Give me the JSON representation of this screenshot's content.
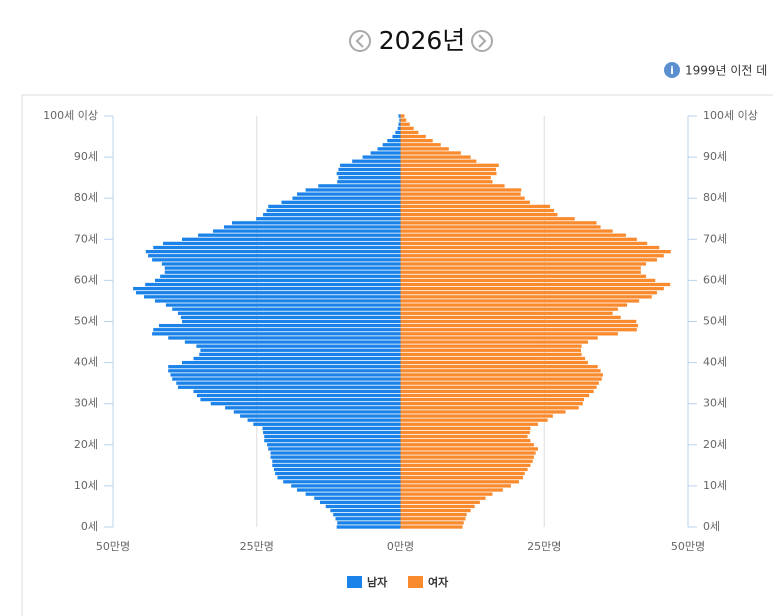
{
  "header": {
    "year": "2026년",
    "notice": "1999년 이전 데"
  },
  "chart_data": {
    "type": "pyramid",
    "y": [
      0,
      1,
      2,
      3,
      4,
      5,
      6,
      7,
      8,
      9,
      10,
      11,
      12,
      13,
      14,
      15,
      16,
      17,
      18,
      19,
      20,
      21,
      22,
      23,
      24,
      25,
      26,
      27,
      28,
      29,
      30,
      31,
      32,
      33,
      34,
      35,
      36,
      37,
      38,
      39,
      40,
      41,
      42,
      43,
      44,
      45,
      46,
      47,
      48,
      49,
      50,
      51,
      52,
      53,
      54,
      55,
      56,
      57,
      58,
      59,
      60,
      61,
      62,
      63,
      64,
      65,
      66,
      67,
      68,
      69,
      70,
      71,
      72,
      73,
      74,
      75,
      76,
      77,
      78,
      79,
      80,
      81,
      82,
      83,
      84,
      85,
      86,
      87,
      88,
      89,
      90,
      91,
      92,
      93,
      94,
      95,
      96,
      97,
      98,
      99,
      100
    ],
    "series": [
      {
        "name": "남자",
        "color": "#1a82e8",
        "side": "left",
        "values": [
          11.1,
          11,
          11.3,
          11.7,
          12.2,
          13,
          14,
          15,
          16.5,
          18,
          19,
          20.4,
          21.4,
          21.8,
          22,
          22.3,
          22.3,
          22.6,
          22.6,
          23,
          23.2,
          23.7,
          23.7,
          23.9,
          24,
          25.6,
          26.6,
          27.9,
          29,
          30.5,
          33,
          34.8,
          35.4,
          36,
          38.7,
          39,
          39.7,
          40,
          40.4,
          40.4,
          38,
          36,
          35,
          34.8,
          35.5,
          37.5,
          40.4,
          43.2,
          43,
          42,
          38,
          38.2,
          38.7,
          39.7,
          40.8,
          42.7,
          44.6,
          46,
          46.5,
          44.4,
          42.7,
          41.8,
          41,
          41,
          41.5,
          43.2,
          43.9,
          44.3,
          43,
          41.3,
          38,
          35.2,
          32.6,
          30.7,
          29.3,
          25.1,
          23.9,
          23.3,
          23,
          20.7,
          18.8,
          18,
          16.5,
          14.3,
          11,
          10.8,
          11.1,
          10.8,
          10.5,
          8.4,
          6.6,
          5.2,
          4,
          3.1,
          2.3,
          1.4,
          0.9,
          0.5,
          0.35,
          0.2,
          0.35
        ]
      },
      {
        "name": "여자",
        "color": "#f98a2e",
        "side": "right",
        "values": [
          10.8,
          11,
          11.3,
          11.5,
          12.2,
          12.9,
          13.8,
          14.8,
          16,
          17.8,
          19.2,
          20.6,
          21.3,
          21.6,
          22.1,
          22.6,
          23,
          23.2,
          23.5,
          23.9,
          23.2,
          22.6,
          22.1,
          22.5,
          22.6,
          23.9,
          25.6,
          26.5,
          28.7,
          31,
          31.7,
          31.9,
          32.8,
          33.6,
          34.1,
          34.5,
          35,
          35.2,
          34.8,
          34.3,
          32.6,
          32.1,
          31.5,
          31.4,
          31.5,
          32.6,
          34.3,
          37.8,
          41.1,
          41.3,
          41,
          38.3,
          36.9,
          37.8,
          39.4,
          41.5,
          43.7,
          44.6,
          45.8,
          46.9,
          44.3,
          42.7,
          41.8,
          41.8,
          42.7,
          44.6,
          45.8,
          47,
          45,
          42.9,
          41.1,
          39.2,
          36.9,
          34.8,
          34.1,
          30.3,
          27.3,
          26.7,
          26,
          22.5,
          21.6,
          20.9,
          21,
          18.1,
          16,
          15.7,
          16.7,
          16.6,
          17.1,
          13.2,
          12.2,
          10.5,
          8.4,
          7,
          5.6,
          4.4,
          3.1,
          2.3,
          1.6,
          1,
          0.7
        ]
      }
    ],
    "xlim": [
      -50,
      50
    ],
    "xticks": [
      {
        "value": -50,
        "label": "50만명"
      },
      {
        "value": -25,
        "label": "25만명"
      },
      {
        "value": 0,
        "label": "0만명"
      },
      {
        "value": 25,
        "label": "25만명"
      },
      {
        "value": 50,
        "label": "50만명"
      }
    ],
    "ylim": [
      0,
      100
    ],
    "yticks": [
      {
        "value": 0,
        "label": "0세"
      },
      {
        "value": 10,
        "label": "10세"
      },
      {
        "value": 20,
        "label": "20세"
      },
      {
        "value": 30,
        "label": "30세"
      },
      {
        "value": 40,
        "label": "40세"
      },
      {
        "value": 50,
        "label": "50세"
      },
      {
        "value": 60,
        "label": "60세"
      },
      {
        "value": 70,
        "label": "70세"
      },
      {
        "value": 80,
        "label": "80세"
      },
      {
        "value": 90,
        "label": "90세"
      },
      {
        "value": 100,
        "label": "100세 이상"
      }
    ],
    "grid": true
  }
}
